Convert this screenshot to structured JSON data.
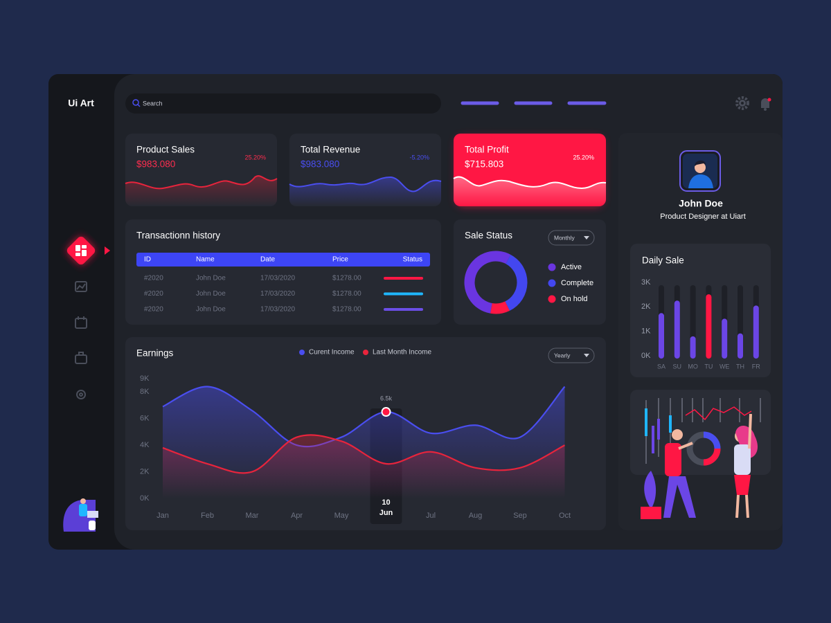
{
  "brand": "Ui Art",
  "search": "Search",
  "cards": [
    {
      "title": "Product Sales",
      "value": "$983.080",
      "change": "25.20%"
    },
    {
      "title": "Total Revenue",
      "value": "$983.080",
      "change": "-5.20%"
    },
    {
      "title": "Total Profit",
      "value": "$715.803",
      "change": "25.20%"
    }
  ],
  "transactions": {
    "title": "Transactionn history",
    "headers": [
      "ID",
      "Name",
      "Date",
      "Price",
      "Status"
    ],
    "rows": [
      [
        "#2020",
        "John Doe",
        "17/03/2020",
        "$1278.00"
      ],
      [
        "#2020",
        "John Doe",
        "17/03/2020",
        "$1278.00"
      ],
      [
        "#2020",
        "John Doe",
        "17/03/2020",
        "$1278.00"
      ]
    ],
    "status_colors": [
      "#ff1744",
      "#1fb6ff",
      "#6b4ee6"
    ]
  },
  "profile": {
    "name": "John Doe",
    "role": "Product Designer at Uiart"
  },
  "chart_data": [
    {
      "type": "pie",
      "title": "Sale Status",
      "dropdown": "Monthly",
      "categories": [
        "Active",
        "Complete",
        "On hold"
      ],
      "values": [
        55,
        35,
        10
      ],
      "colors": [
        "#6a35e0",
        "#4347f0",
        "#ff1744"
      ]
    },
    {
      "type": "line",
      "title": "Earnings",
      "dropdown": "Yearly",
      "highlight_day": "10",
      "categories": [
        "Jan",
        "Feb",
        "Mar",
        "Apr",
        "May",
        "Jun",
        "Jul",
        "Aug",
        "Sep",
        "Oct"
      ],
      "series": [
        {
          "name": "Curent Income",
          "color": "#4a4ef0",
          "values": [
            6.9,
            8.4,
            6.6,
            4.0,
            4.6,
            6.5,
            4.9,
            5.5,
            4.6,
            8.4
          ],
          "value_labels": [
            null,
            null,
            null,
            null,
            null,
            "6.5k",
            null,
            null,
            null,
            null
          ]
        },
        {
          "name": "Last Month Income",
          "color": "#e8243c",
          "values": [
            3.8,
            2.6,
            2.0,
            4.6,
            4.3,
            2.6,
            3.5,
            2.3,
            2.3,
            4.0
          ]
        }
      ],
      "ylim": [
        0,
        9
      ],
      "yticks": [
        {
          "value": 0,
          "label": "0K"
        },
        {
          "value": 2,
          "label": "2K"
        },
        {
          "value": 4,
          "label": "4K"
        },
        {
          "value": 6,
          "label": "6K"
        },
        {
          "value": 8,
          "label": "8K"
        },
        {
          "value": 9,
          "label": "9K"
        }
      ]
    },
    {
      "type": "bar",
      "title": "Daily Sale",
      "categories": [
        "SA",
        "SU",
        "MO",
        "TU",
        "WE",
        "TH",
        "FR"
      ],
      "values": [
        1.86,
        2.37,
        0.91,
        2.63,
        1.63,
        1.03,
        2.17
      ],
      "colors": [
        "#6b46e6",
        "#6b46e6",
        "#6b46e6",
        "#ff1744",
        "#6b46e6",
        "#6b46e6",
        "#6b46e6"
      ],
      "ylim": [
        0,
        3
      ],
      "yticks": [
        {
          "value": 0,
          "label": "0K"
        },
        {
          "value": 1,
          "label": "1K"
        },
        {
          "value": 2,
          "label": "2K"
        },
        {
          "value": 3,
          "label": "3K"
        }
      ]
    }
  ]
}
